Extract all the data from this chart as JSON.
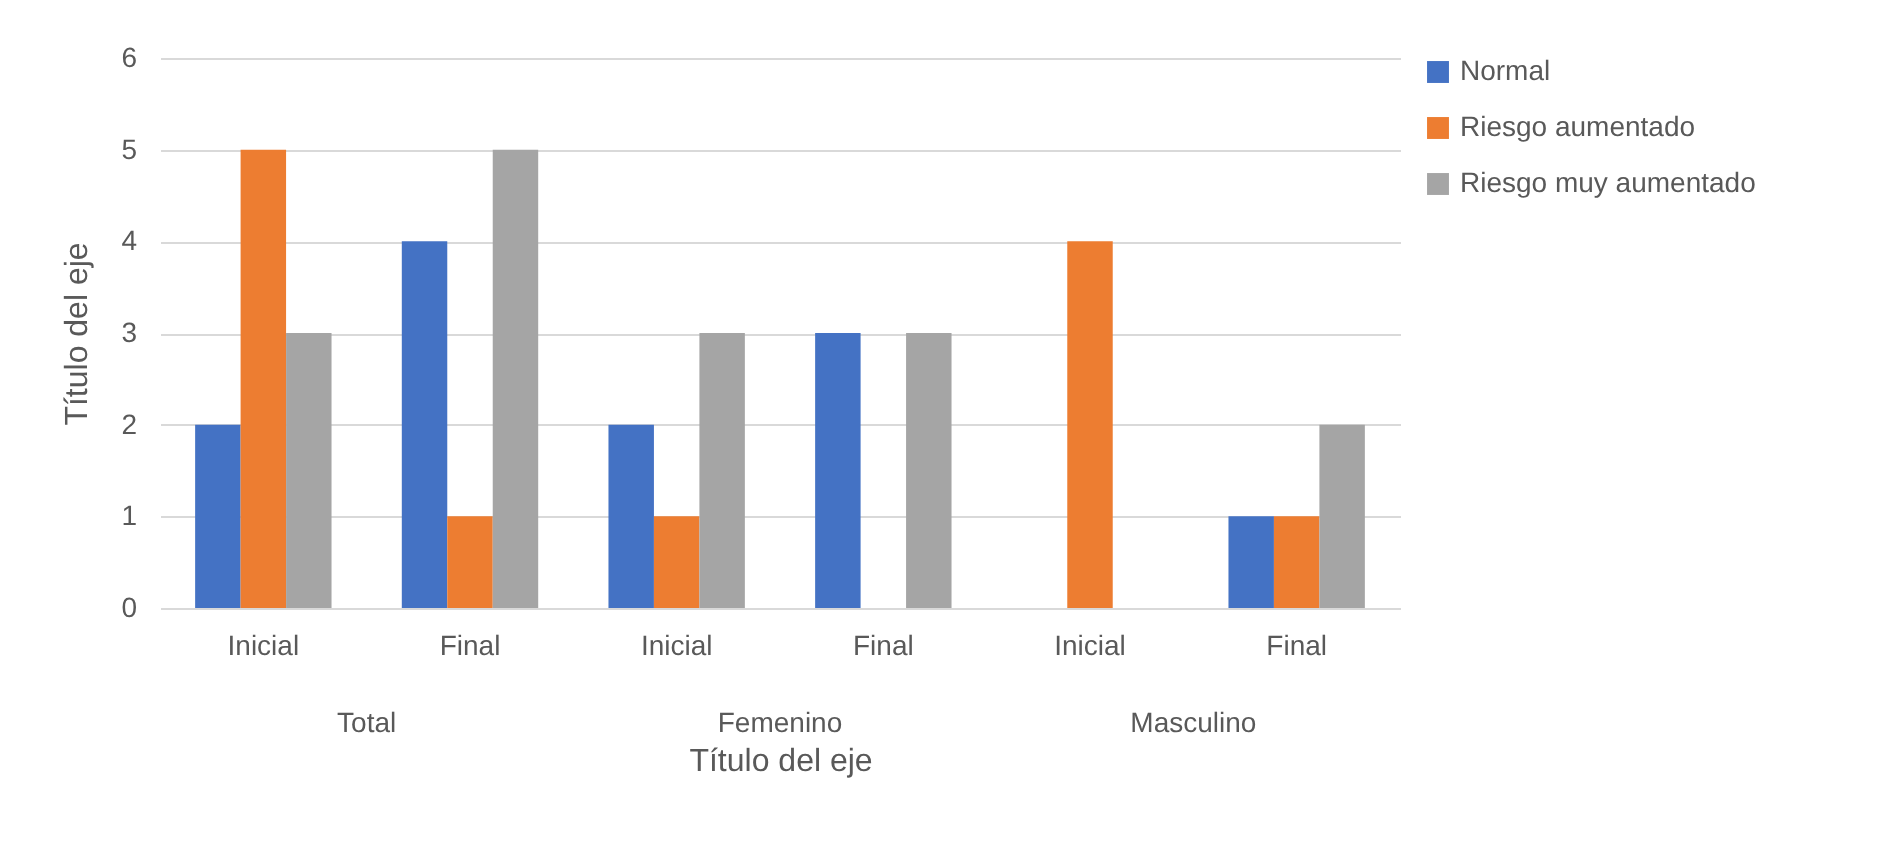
{
  "chart_data": {
    "type": "bar",
    "xlabel": "Título del eje",
    "ylabel": "Título del eje",
    "categories": [
      "Inicial",
      "Final",
      "Inicial",
      "Final",
      "Inicial",
      "Final"
    ],
    "series": [
      {
        "name": "Normal",
        "color": "#4472c4",
        "values": [
          2,
          4,
          2,
          3,
          0,
          1
        ]
      },
      {
        "name": "Riesgo aumentado",
        "color": "#ed7d31",
        "values": [
          5,
          1,
          1,
          0,
          4,
          1
        ]
      },
      {
        "name": "Riesgo muy aumentado",
        "color": "#a5a5a5",
        "values": [
          3,
          5,
          3,
          3,
          0,
          2
        ]
      }
    ],
    "annotations": [
      "Total",
      "Femenino",
      "Masculino"
    ],
    "ylim": [
      0,
      6
    ],
    "yticks": [
      0,
      1,
      2,
      3,
      4,
      5,
      6
    ],
    "grid": "y",
    "legend": "right"
  }
}
